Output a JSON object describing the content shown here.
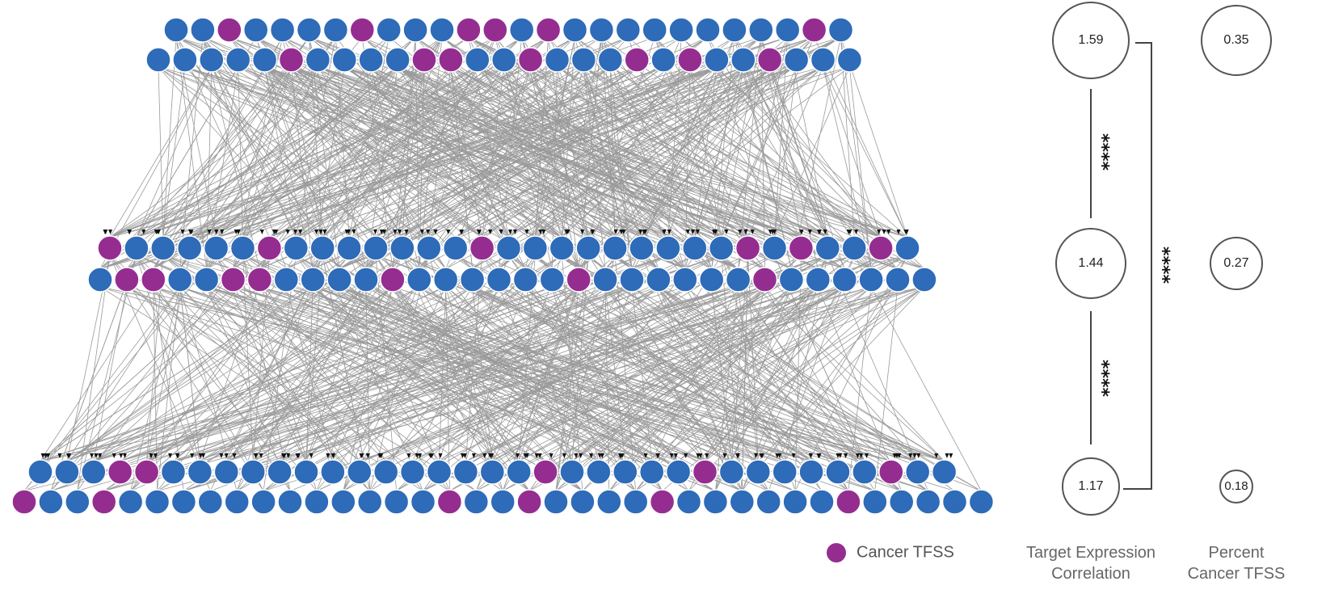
{
  "colors": {
    "regular_node": "#2e6bb8",
    "cancer_node": "#952d91",
    "edge": "#9a9a9a"
  },
  "network": {
    "layers": [
      {
        "rows": [
          [
            0,
            0,
            1,
            0,
            0,
            0,
            0,
            1,
            0,
            0,
            0,
            1,
            1,
            0,
            1,
            0,
            0,
            0,
            0,
            0,
            0,
            0,
            0,
            0,
            1,
            0
          ],
          [
            0,
            0,
            0,
            0,
            0,
            1,
            0,
            0,
            0,
            0,
            1,
            1,
            0,
            0,
            1,
            0,
            0,
            0,
            1,
            0,
            1,
            0,
            0,
            1,
            0,
            0,
            0
          ]
        ]
      },
      {
        "rows": [
          [
            1,
            0,
            0,
            0,
            0,
            0,
            1,
            0,
            0,
            0,
            0,
            0,
            0,
            0,
            1,
            0,
            0,
            0,
            0,
            0,
            0,
            0,
            0,
            0,
            1,
            0,
            1,
            0,
            0,
            1,
            0
          ],
          [
            0,
            1,
            1,
            0,
            0,
            1,
            1,
            0,
            0,
            0,
            0,
            1,
            0,
            0,
            0,
            0,
            0,
            0,
            1,
            0,
            0,
            0,
            0,
            0,
            0,
            1,
            0,
            0,
            0,
            0,
            0,
            0
          ]
        ]
      },
      {
        "rows": [
          [
            0,
            0,
            0,
            1,
            1,
            0,
            0,
            0,
            0,
            0,
            0,
            0,
            0,
            0,
            0,
            0,
            0,
            0,
            0,
            1,
            0,
            0,
            0,
            0,
            0,
            1,
            0,
            0,
            0,
            0,
            0,
            0,
            1,
            0,
            0
          ],
          [
            1,
            0,
            0,
            1,
            0,
            0,
            0,
            0,
            0,
            0,
            0,
            0,
            0,
            0,
            0,
            0,
            1,
            0,
            0,
            1,
            0,
            0,
            0,
            0,
            1,
            0,
            0,
            0,
            0,
            0,
            0,
            1,
            0,
            0,
            0,
            0,
            0
          ]
        ]
      }
    ]
  },
  "metrics": {
    "target_expression_correlation": {
      "values": [
        "1.59",
        "1.44",
        "1.17"
      ],
      "caption_line1": "Target Expression",
      "caption_line2": "Correlation"
    },
    "percent_cancer_tfss": {
      "values": [
        "0.35",
        "0.27",
        "0.18"
      ],
      "caption_line1": "Percent",
      "caption_line2": "Cancer TFSS"
    },
    "significance": {
      "top_middle": "****",
      "middle_bottom": "****",
      "top_bottom": "****"
    }
  },
  "legend": {
    "label": "Cancer TFSS"
  }
}
